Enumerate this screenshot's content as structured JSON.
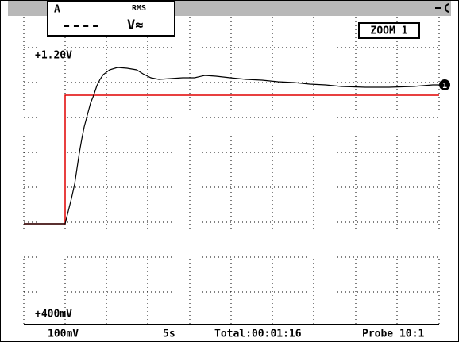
{
  "header": {
    "channel": "A",
    "reading": "----",
    "mode": "RMS",
    "unit": "V≈",
    "zoom": "ZOOM 1"
  },
  "trace": {
    "top_label": "+1.20V",
    "bottom_label": "+400mV",
    "marker": "1"
  },
  "footer": {
    "scale": "100mV",
    "time_base": "5s",
    "total": "Total:00:01:16",
    "probe": "Probe 10:1"
  }
}
